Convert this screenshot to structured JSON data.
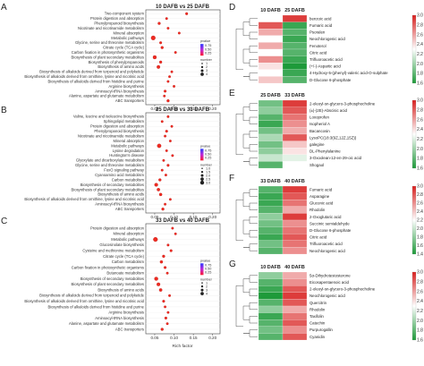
{
  "figure": {
    "dot_panels": [
      {
        "letter": "A",
        "title": "10 DAFB vs 25 DAFB",
        "x_label": "Rich factor",
        "x_ticks": [
          "0.05",
          "0.10",
          "0.15",
          "0.20"
        ],
        "legend_pvalue_title": "pvalue",
        "legend_pvalue_ticks": [
          "0.75",
          "0.50",
          "0.25"
        ],
        "legend_number_title": "number",
        "legend_number_values": [
          "1",
          "2",
          "3",
          "4"
        ],
        "terms": [
          "Two-component system",
          "Protein digestion and absorption",
          "Phenylpropanoid biosynthesis",
          "Nicotinate and nicotinamide metabolism",
          "Mineral absorption",
          "Metabolic pathways",
          "Glycine, serine and threonine metabolism",
          "Citrate cycle (TCA cycle)",
          "Carbon fixation in photosynthetic organisms",
          "Biosynthesis of plant secondary metabolites",
          "Biosynthesis of phenylpropanoids",
          "Biosynthesis of amino acids",
          "Biosynthesis of alkaloids derived from terpenoid and polyketide",
          "Biosynthesis of alkaloids derived from ornithine, lysine and nicotinic acid",
          "Biosynthesis of alkaloids derived from histidine and purine",
          "Arginine biosynthesis",
          "Aminoacyl-tRNA biosynthesis",
          "Alanine, aspartate and glutamate metabolism",
          "ABC transporters"
        ]
      },
      {
        "letter": "B",
        "title": "25 DAFB vs 33 DAFB",
        "x_label": "Rich factor",
        "x_ticks": [
          "0.05",
          "0.10",
          "0.15",
          "0.20"
        ],
        "legend_pvalue_title": "pvalue",
        "legend_pvalue_ticks": [
          "0.75",
          "0.50",
          "0.25"
        ],
        "legend_number_title": "number",
        "legend_number_values": [
          "1.0",
          "1.5",
          "2.0",
          "2.5",
          "3.0"
        ],
        "terms": [
          "Valine, leucine and isoleucine biosynthesis",
          "Sphingolipid metabolism",
          "Protein digestion and absorption",
          "Phenylpropanoid biosynthesis",
          "Nicotinate and nicotinamide metabolism",
          "Mineral absorption",
          "Metabolic pathways",
          "Lysine degradation",
          "Huntington's disease",
          "Glyoxylate and dicarboxylate metabolism",
          "Glycine, serine and threonine metabolism",
          "FoxO signaling pathway",
          "Cyanoamino acid metabolism",
          "Carbon metabolism",
          "Biosynthesis of secondary metabolites",
          "Biosynthesis of plant secondary metabolites",
          "Biosynthesis of amino acids",
          "Biosynthesis of alkaloids derived from ornithine, lysine and nicotinic acid",
          "Aminoacyl-tRNA biosynthesis",
          "ABC transporters"
        ]
      },
      {
        "letter": "C",
        "title": "33 DAFB vs 40 DAFB",
        "x_label": "Rich factor",
        "x_ticks": [
          "0.05",
          "0.10",
          "0.15",
          "0.20"
        ],
        "legend_pvalue_title": "pvalue",
        "legend_pvalue_ticks": [
          "0.75",
          "0.50",
          "0.25"
        ],
        "legend_number_title": "number",
        "legend_number_values": [
          "1",
          "2",
          "3",
          "4"
        ],
        "terms": [
          "Protein digestion and absorption",
          "Mineral absorption",
          "Metabolic pathways",
          "Glucosinolate biosynthesis",
          "Cysteine and methionine metabolism",
          "Citrate cycle (TCA cycle)",
          "Carbon metabolism",
          "Carbon fixation in photosynthetic organisms",
          "Butanoate metabolism",
          "Biosynthesis of secondary metabolites",
          "Biosynthesis of plant secondary metabolites",
          "Biosynthesis of amino acids",
          "Biosynthesis of alkaloids derived from terpenoid and polyketide",
          "Biosynthesis of alkaloids derived from ornithine, lysine and nicotinic acid",
          "Biosynthesis of alkaloids derived from histidine and purine",
          "Arginine biosynthesis",
          "Aminoacyl-tRNA biosynthesis",
          "Alanine, aspartate and glutamate metabolism",
          "ABC transporters"
        ]
      }
    ],
    "heatmaps": [
      {
        "letter": "D",
        "col_labels": [
          "10 DAFB",
          "25 DAFB"
        ],
        "rows": [
          "benzoic acid",
          "Fumaric acid",
          "Psoralen",
          "Neochlorogenic acid",
          "Fenoterol",
          "Citric acid",
          "Trifluoroacetic acid",
          "(+/-)-Aspartic acid",
          "4-Hydroxy-5-(phenyl)-valeric acid-O-sulphate",
          "D-Glucose 6-phosphate"
        ],
        "values": [
          [
            2.2,
            2.9
          ],
          [
            2.8,
            1.5
          ],
          [
            2.5,
            1.6
          ],
          [
            2.2,
            1.5
          ],
          [
            2.5,
            1.6
          ],
          [
            2.2,
            1.6
          ],
          [
            2.6,
            1.5
          ],
          [
            2.3,
            1.4
          ],
          [
            2.2,
            1.5
          ],
          [
            2.4,
            1.6
          ]
        ],
        "cb_ticks": [
          "3.0",
          "2.8",
          "2.6",
          "2.4",
          "2.2",
          "2.0",
          "1.8",
          "1.6"
        ]
      },
      {
        "letter": "E",
        "col_labels": [
          "25 DAFB",
          "33 DAFB"
        ],
        "rows": [
          "2-oleoyl-sn-glycero-3-phosphocholine",
          "(±)-(2E)-Abscisic acid",
          "Loxoprofen",
          "Isopheriol A",
          "Bacancosin",
          "LysoPC(18:3(9Z,12Z,15Z))",
          "galegine",
          "DL-Phenylalanine",
          "3-Oxoolean-12-en-29-oic acid",
          "Shogaol"
        ],
        "values": [
          [
            1.7,
            2.9
          ],
          [
            1.8,
            2.8
          ],
          [
            1.6,
            2.7
          ],
          [
            1.5,
            2.6
          ],
          [
            1.7,
            2.5
          ],
          [
            1.9,
            2.8
          ],
          [
            1.7,
            2.4
          ],
          [
            1.8,
            2.3
          ],
          [
            2.0,
            2.1
          ],
          [
            1.6,
            2.2
          ]
        ],
        "cb_ticks": [
          "3.0",
          "2.8",
          "2.6",
          "2.4",
          "2.2",
          "2.0",
          "1.8",
          "1.6"
        ]
      },
      {
        "letter": "F",
        "col_labels": [
          "33 DAFB",
          "40 DAFB"
        ],
        "rows": [
          "Fumaric acid",
          "Asparagine",
          "Gluconic acid",
          "Rhodolin",
          "2-Oxoglutaric acid",
          "Succinic semialdehyde",
          "D-Glucose 6-phosphate",
          "Citric acid",
          "Trifluoroacetic acid",
          "Neochlorogenic acid"
        ],
        "values": [
          [
            1.6,
            2.9
          ],
          [
            1.5,
            2.8
          ],
          [
            1.5,
            2.7
          ],
          [
            1.6,
            2.5
          ],
          [
            1.8,
            2.9
          ],
          [
            1.7,
            2.6
          ],
          [
            1.6,
            2.7
          ],
          [
            1.5,
            2.8
          ],
          [
            1.7,
            2.7
          ],
          [
            1.6,
            2.6
          ]
        ],
        "cb_ticks": [
          "3.0",
          "2.8",
          "2.6",
          "2.4",
          "2.2",
          "2.0",
          "1.8",
          "1.6",
          "1.4"
        ]
      },
      {
        "letter": "G",
        "col_labels": [
          "10 DAFB",
          "40 DAFB"
        ],
        "rows": [
          "5α-Dihydrotestosterone",
          "Eicosapentaenoic acid",
          "2-oleoyl-sn-glycero-3-phosphocholine",
          "Neochlorogenic acid",
          "Quercitrin",
          "Rhodolin",
          "Taxifolin",
          "Catechin",
          "Purpurogallin",
          "Cyanidin"
        ],
        "values": [
          [
            1.8,
            2.5
          ],
          [
            1.6,
            2.6
          ],
          [
            1.5,
            2.8
          ],
          [
            1.4,
            2.9
          ],
          [
            1.6,
            2.8
          ],
          [
            1.8,
            2.5
          ],
          [
            1.5,
            2.7
          ],
          [
            1.6,
            2.8
          ],
          [
            1.7,
            2.6
          ],
          [
            1.6,
            2.8
          ]
        ],
        "cb_ticks": [
          "3.0",
          "2.8",
          "2.6",
          "2.4",
          "2.2",
          "2.0",
          "1.8",
          "1.6"
        ]
      }
    ],
    "colors": {
      "low": "#1e9a3a",
      "mid": "#ffffff",
      "high": "#d8201f",
      "dot": "#ee2b22"
    }
  }
}
